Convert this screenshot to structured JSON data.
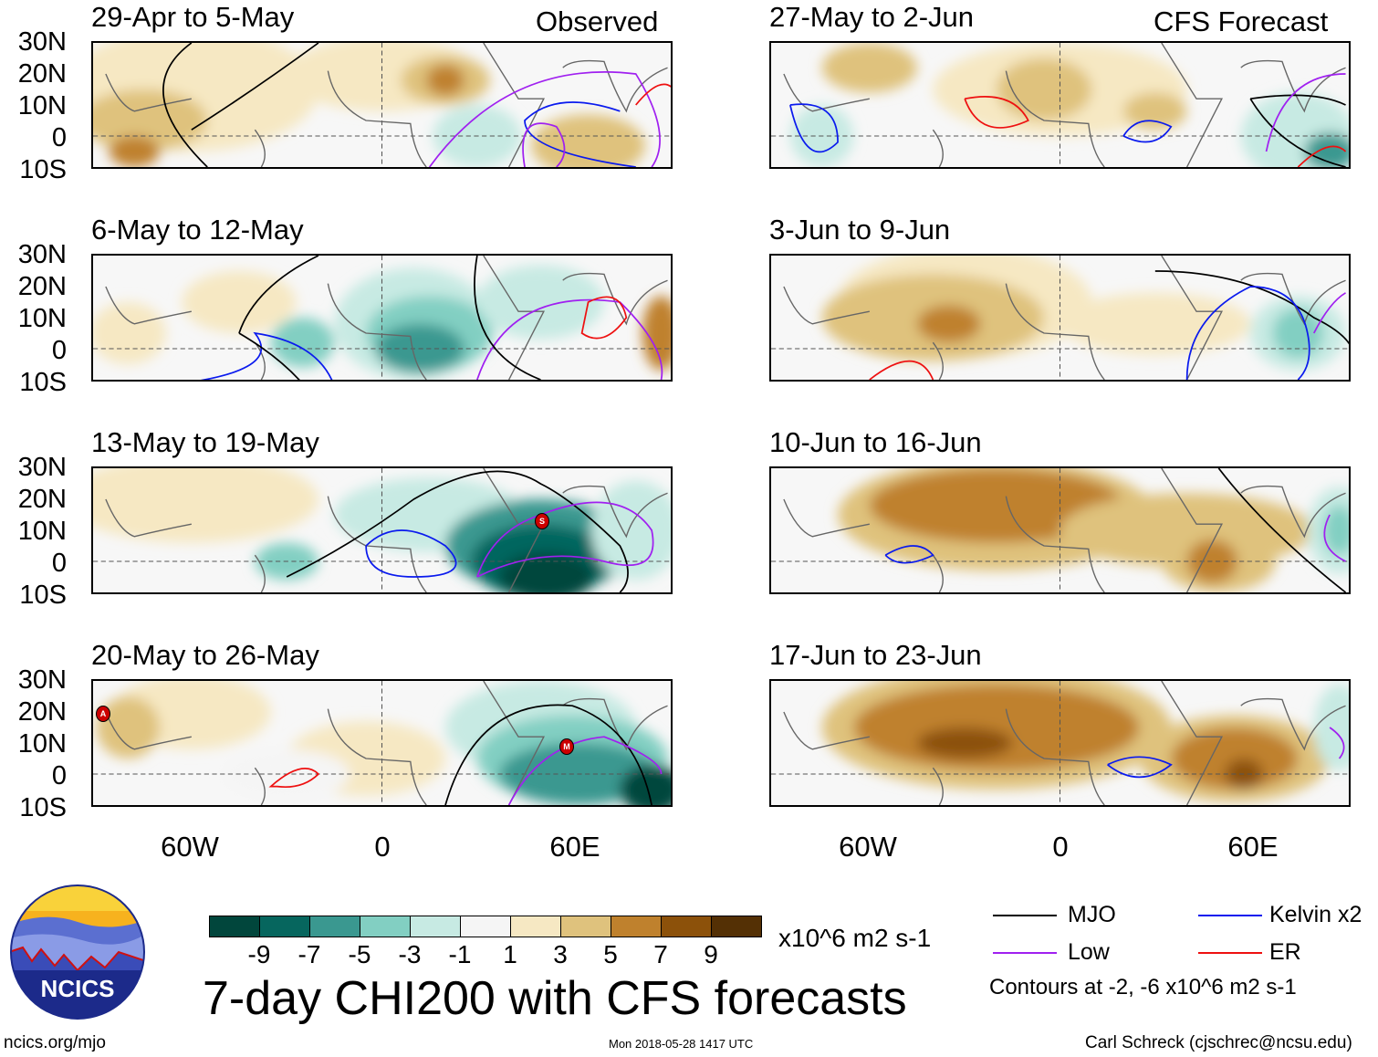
{
  "title": "7-day CHI200 with CFS forecasts",
  "header": {
    "observed": "Observed",
    "forecast": "CFS Forecast"
  },
  "panels": [
    {
      "label": "29-Apr to 5-May",
      "group": "observed"
    },
    {
      "label": "6-May to 12-May",
      "group": "observed"
    },
    {
      "label": "13-May to 19-May",
      "group": "observed"
    },
    {
      "label": "20-May to 26-May",
      "group": "observed"
    },
    {
      "label": "27-May to 2-Jun",
      "group": "forecast"
    },
    {
      "label": "3-Jun to 9-Jun",
      "group": "forecast"
    },
    {
      "label": "10-Jun to 16-Jun",
      "group": "forecast"
    },
    {
      "label": "17-Jun to 23-Jun",
      "group": "forecast"
    }
  ],
  "storm_markers": [
    "S",
    "A",
    "M"
  ],
  "lat_ticks": [
    "30N",
    "20N",
    "10N",
    "0",
    "10S"
  ],
  "lon_ticks": [
    "60W",
    "0",
    "60E"
  ],
  "chart_data": {
    "type": "heatmap",
    "variable": "7-day CHI200 (200-hPa velocity potential anomaly)",
    "units": "x10^6 m2 s-1",
    "lon_range": [
      -90,
      90
    ],
    "lat_range": [
      -10,
      30
    ],
    "colorbar": {
      "levels": [
        "-9",
        "-7",
        "-5",
        "-3",
        "-1",
        "1",
        "3",
        "5",
        "7",
        "9"
      ],
      "colors": [
        "#01463c",
        "#06665e",
        "#3a9890",
        "#82cfc2",
        "#c7eae3",
        "#f5f5f5",
        "#f6e8c3",
        "#dfc27d",
        "#bf812d",
        "#8c510a",
        "#543005"
      ]
    }
  },
  "legend": {
    "items": [
      {
        "label": "MJO",
        "color": "#000000"
      },
      {
        "label": "Kelvin x2",
        "color": "#0a1aee"
      },
      {
        "label": "Low",
        "color": "#a020f0"
      },
      {
        "label": "ER",
        "color": "#ee1010"
      }
    ],
    "note": "Contours at -2, -6 x10^6 m2 s-1"
  },
  "footer": {
    "site": "ncics.org/mjo",
    "timestamp": "Mon 2018-05-28 1417 UTC",
    "credit": "Carl Schreck (cjschrec@ncsu.edu)",
    "logo": "NCICS"
  }
}
